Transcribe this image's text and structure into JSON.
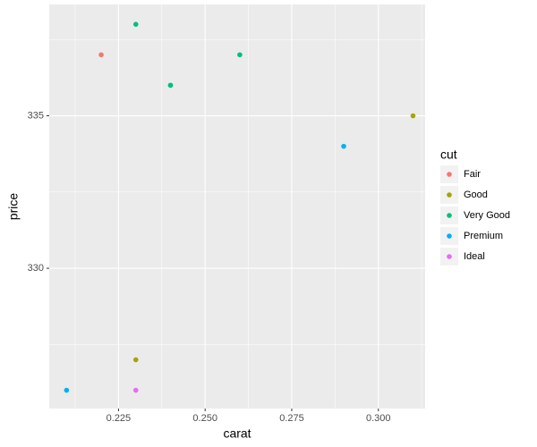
{
  "chart_data": {
    "type": "scatter",
    "x_label": "carat",
    "y_label": "price",
    "legend_title": "cut",
    "series": [
      {
        "name": "Fair",
        "color": "#F8766D",
        "x": [
          0.22
        ],
        "values": [
          337
        ]
      },
      {
        "name": "Good",
        "color": "#A3A500",
        "x": [
          0.23,
          0.31
        ],
        "values": [
          327,
          335
        ]
      },
      {
        "name": "Very Good",
        "color": "#00BF7D",
        "x": [
          0.24,
          0.24,
          0.26,
          0.23
        ],
        "values": [
          336,
          336,
          337,
          338
        ]
      },
      {
        "name": "Premium",
        "color": "#00B0F6",
        "x": [
          0.21,
          0.29
        ],
        "values": [
          326,
          334
        ]
      },
      {
        "name": "Ideal",
        "color": "#E76BF3",
        "x": [
          0.23
        ],
        "values": [
          326
        ]
      }
    ],
    "xlim": [
      0.205,
      0.3135
    ],
    "ylim": [
      325.4,
      338.65
    ],
    "xticks": [
      0.225,
      {
        "value": 0.25,
        "label": "0.250"
      },
      0.275,
      {
        "value": 0.3,
        "label": "0.300"
      }
    ],
    "yticks": [
      330,
      335
    ],
    "minor_xticks": [
      0.2125,
      0.2375,
      0.2625,
      0.2875,
      0.3125
    ],
    "minor_yticks": [
      327.5,
      332.5,
      337.5
    ],
    "grid": true,
    "legend": "right"
  }
}
